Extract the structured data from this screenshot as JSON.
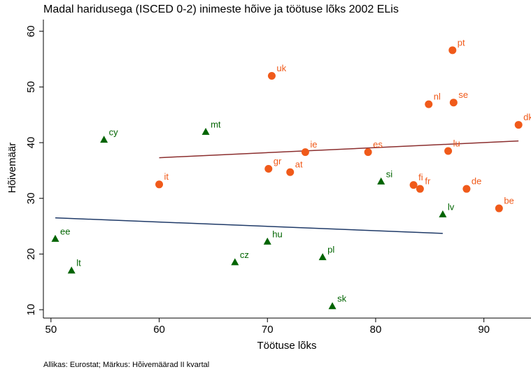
{
  "chart_data": {
    "type": "scatter",
    "title": "Madal haridusega (ISCED 0-2) inimeste hõive ja töötuse lõks 2002 ELis",
    "x_label": "Töötuse lõks",
    "y_label": "Hõivemäär",
    "footnote": "Allikas: Eurostat; Märkus: Hõivemäärad II kvartal",
    "xlim": [
      49.3,
      93.9
    ],
    "ylim": [
      8.5,
      62.1
    ],
    "xticks": [
      50,
      60,
      70,
      80,
      90
    ],
    "yticks": [
      10,
      20,
      30,
      40,
      50,
      60
    ],
    "series": [
      {
        "color": "#f05a1a",
        "marker": "circle",
        "labels": [
          "pt",
          "uk",
          "nl",
          "se",
          "dk",
          "ie",
          "es",
          "lu",
          "gr",
          "at",
          "it",
          "fi",
          "fr",
          "de",
          "be"
        ],
        "x": [
          87.1,
          70.4,
          84.9,
          87.2,
          93.2,
          73.5,
          79.3,
          86.7,
          70.1,
          72.1,
          60.0,
          83.5,
          84.1,
          88.4,
          91.4
        ],
        "y": [
          56.6,
          52.0,
          46.9,
          47.2,
          43.2,
          38.3,
          38.3,
          38.5,
          35.3,
          34.7,
          32.5,
          32.4,
          31.7,
          31.7,
          28.2
        ]
      },
      {
        "color": "#006400",
        "marker": "triangle",
        "labels": [
          "cy",
          "mt",
          "si",
          "lv",
          "ee",
          "hu",
          "cz",
          "pl",
          "lt",
          "sk"
        ],
        "x": [
          54.9,
          64.3,
          80.5,
          86.2,
          50.4,
          70.0,
          67.0,
          75.1,
          51.9,
          76.0
        ],
        "y": [
          40.5,
          41.9,
          33.0,
          27.1,
          22.7,
          22.2,
          18.5,
          19.4,
          17.0,
          10.6
        ]
      }
    ],
    "lines": [
      {
        "color": "#8b2e2e",
        "x": [
          60.0,
          93.2
        ],
        "y": [
          37.3,
          40.3
        ]
      },
      {
        "color": "#1f3a68",
        "x": [
          50.4,
          86.2
        ],
        "y": [
          26.5,
          23.7
        ]
      }
    ]
  }
}
